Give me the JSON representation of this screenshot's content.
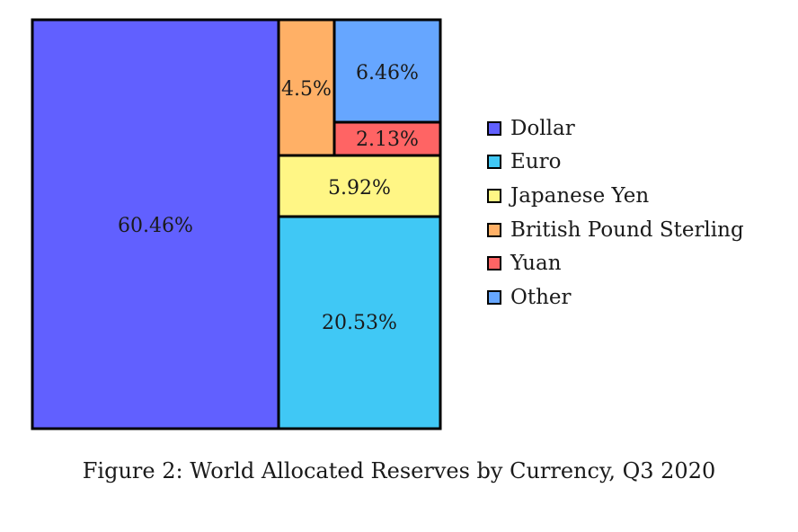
{
  "chart_data": {
    "type": "treemap",
    "title": "Figure 2: World Allocated Reserves by Currency, Q3 2020",
    "cells": [
      {
        "name": "Dollar",
        "value": 60.46,
        "label": "60.46%",
        "color": "#6160ff"
      },
      {
        "name": "Euro",
        "value": 20.53,
        "label": "20.53%",
        "color": "#40c8f5"
      },
      {
        "name": "Japanese Yen",
        "value": 5.92,
        "label": "5.92%",
        "color": "#fff685"
      },
      {
        "name": "British Pound Sterling",
        "value": 4.5,
        "label": "4.5%",
        "color": "#ffb066"
      },
      {
        "name": "Yuan",
        "value": 2.13,
        "label": "2.13%",
        "color": "#ff6464"
      },
      {
        "name": "Other",
        "value": 6.46,
        "label": "6.46%",
        "color": "#66a6ff"
      }
    ],
    "legend": [
      "Dollar",
      "Euro",
      "Japanese Yen",
      "British Pound Sterling",
      "Yuan",
      "Other"
    ],
    "legend_position": "right"
  }
}
